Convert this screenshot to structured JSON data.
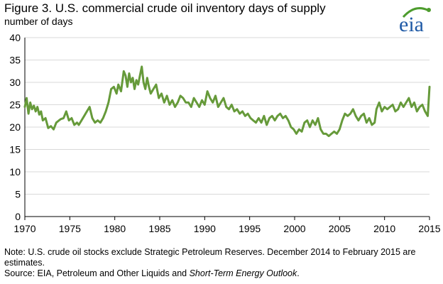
{
  "colors": {
    "line": "#669a3a",
    "gridline": "#d9d9d9",
    "axis": "#000000",
    "logo_blue": "#1f5aa6",
    "logo_green": "#4d9c2d"
  },
  "header": {
    "title": "Figure 3.  U.S. commercial crude oil inventory days of supply",
    "subtitle": "number  of days"
  },
  "logo": {
    "text": "eia",
    "icon": "eia-logo"
  },
  "footer": {
    "note": "Note:  U.S. crude oil stocks exclude Strategic Petroleum Reserves. December 2014 to February 2015 are estimates.",
    "source_prefix": "Source:  EIA, Petroleum and Other Liquids and ",
    "source_italic": "Short-Term Energy Outlook",
    "source_suffix": "."
  },
  "chart_data": {
    "type": "line",
    "title": "Figure 3.  U.S. commercial crude oil inventory days of supply",
    "ylabel": "number  of days",
    "xlabel": "",
    "xlim": [
      1970,
      2015
    ],
    "ylim": [
      0,
      40
    ],
    "x_ticks": [
      "1970",
      "1975",
      "1980",
      "1985",
      "1990",
      "1995",
      "2000",
      "2005",
      "2010",
      "2015"
    ],
    "y_ticks": [
      "0",
      "5",
      "10",
      "15",
      "20",
      "25",
      "30",
      "35",
      "40"
    ],
    "grid": "horizontal",
    "legend": "none",
    "series": [
      {
        "x": [
          1970.0,
          1970.2,
          1970.4,
          1970.6,
          1970.8,
          1971.0,
          1971.2,
          1971.4,
          1971.6,
          1971.8,
          1972.0,
          1972.3,
          1972.6,
          1972.9,
          1973.2,
          1973.5,
          1973.8,
          1974.0,
          1974.3,
          1974.6,
          1974.9,
          1975.2,
          1975.5,
          1975.8,
          1976.0,
          1976.3,
          1976.6,
          1976.9,
          1977.2,
          1977.5,
          1977.8,
          1978.1,
          1978.4,
          1978.7,
          1979.0,
          1979.3,
          1979.6,
          1979.9,
          1980.2,
          1980.4,
          1980.7,
          1981.0,
          1981.2,
          1981.4,
          1981.6,
          1981.8,
          1982.0,
          1982.2,
          1982.4,
          1982.6,
          1982.8,
          1983.0,
          1983.2,
          1983.4,
          1983.6,
          1983.8,
          1984.0,
          1984.3,
          1984.6,
          1984.9,
          1985.2,
          1985.5,
          1985.8,
          1986.1,
          1986.4,
          1986.7,
          1987.0,
          1987.3,
          1987.6,
          1987.9,
          1988.2,
          1988.5,
          1988.8,
          1989.1,
          1989.4,
          1989.7,
          1990.0,
          1990.3,
          1990.6,
          1990.9,
          1991.2,
          1991.5,
          1991.8,
          1992.1,
          1992.4,
          1992.7,
          1993.0,
          1993.3,
          1993.6,
          1993.9,
          1994.2,
          1994.5,
          1994.8,
          1995.1,
          1995.4,
          1995.7,
          1996.0,
          1996.3,
          1996.6,
          1996.9,
          1997.2,
          1997.5,
          1997.8,
          1998.1,
          1998.4,
          1998.7,
          1999.0,
          1999.3,
          1999.6,
          1999.9,
          2000.2,
          2000.5,
          2000.8,
          2001.1,
          2001.4,
          2001.7,
          2002.0,
          2002.3,
          2002.6,
          2002.9,
          2003.2,
          2003.5,
          2003.8,
          2004.1,
          2004.4,
          2004.7,
          2005.0,
          2005.3,
          2005.6,
          2005.9,
          2006.2,
          2006.5,
          2006.8,
          2007.1,
          2007.4,
          2007.7,
          2008.0,
          2008.3,
          2008.6,
          2008.9,
          2009.1,
          2009.4,
          2009.7,
          2010.0,
          2010.3,
          2010.6,
          2010.9,
          2011.2,
          2011.5,
          2011.8,
          2012.1,
          2012.4,
          2012.7,
          2013.0,
          2013.3,
          2013.6,
          2013.9,
          2014.2,
          2014.5,
          2014.8,
          2015.0
        ],
        "values": [
          24.5,
          26.5,
          23.0,
          25.5,
          24.0,
          24.8,
          23.5,
          24.5,
          22.8,
          23.5,
          21.5,
          22.0,
          19.8,
          20.2,
          19.5,
          21.0,
          21.5,
          21.8,
          22.0,
          23.5,
          21.5,
          22.0,
          20.5,
          21.0,
          20.5,
          21.5,
          22.5,
          23.5,
          24.5,
          22.0,
          21.0,
          21.5,
          21.0,
          22.0,
          23.5,
          25.5,
          28.5,
          29.0,
          27.5,
          29.5,
          28.0,
          32.5,
          31.5,
          29.0,
          32.0,
          30.0,
          31.0,
          28.5,
          30.5,
          29.5,
          31.5,
          33.5,
          30.0,
          28.5,
          31.0,
          29.0,
          27.5,
          28.5,
          29.5,
          26.5,
          27.5,
          25.5,
          27.0,
          25.0,
          26.0,
          24.5,
          25.5,
          27.0,
          26.5,
          25.5,
          25.5,
          24.5,
          26.5,
          25.5,
          24.5,
          26.0,
          25.0,
          28.0,
          26.5,
          25.5,
          27.0,
          24.5,
          25.5,
          26.5,
          24.5,
          24.0,
          25.0,
          23.5,
          24.0,
          23.0,
          23.5,
          22.5,
          23.0,
          22.0,
          21.5,
          21.0,
          22.0,
          21.0,
          22.5,
          20.5,
          22.0,
          22.5,
          21.5,
          22.5,
          23.0,
          22.0,
          22.5,
          21.5,
          20.0,
          19.5,
          18.5,
          19.5,
          19.0,
          21.0,
          21.5,
          20.0,
          21.5,
          20.5,
          22.0,
          19.5,
          18.5,
          18.5,
          18.0,
          18.5,
          19.0,
          18.5,
          19.5,
          21.5,
          23.0,
          22.5,
          23.0,
          24.0,
          22.5,
          21.5,
          22.5,
          23.0,
          21.0,
          22.0,
          20.5,
          21.0,
          24.0,
          25.5,
          23.5,
          24.5,
          24.0,
          24.5,
          25.0,
          23.5,
          24.0,
          25.5,
          24.5,
          25.5,
          26.5,
          24.5,
          25.5,
          23.5,
          24.5,
          25.0,
          23.5,
          22.5,
          29.0
        ]
      }
    ]
  }
}
